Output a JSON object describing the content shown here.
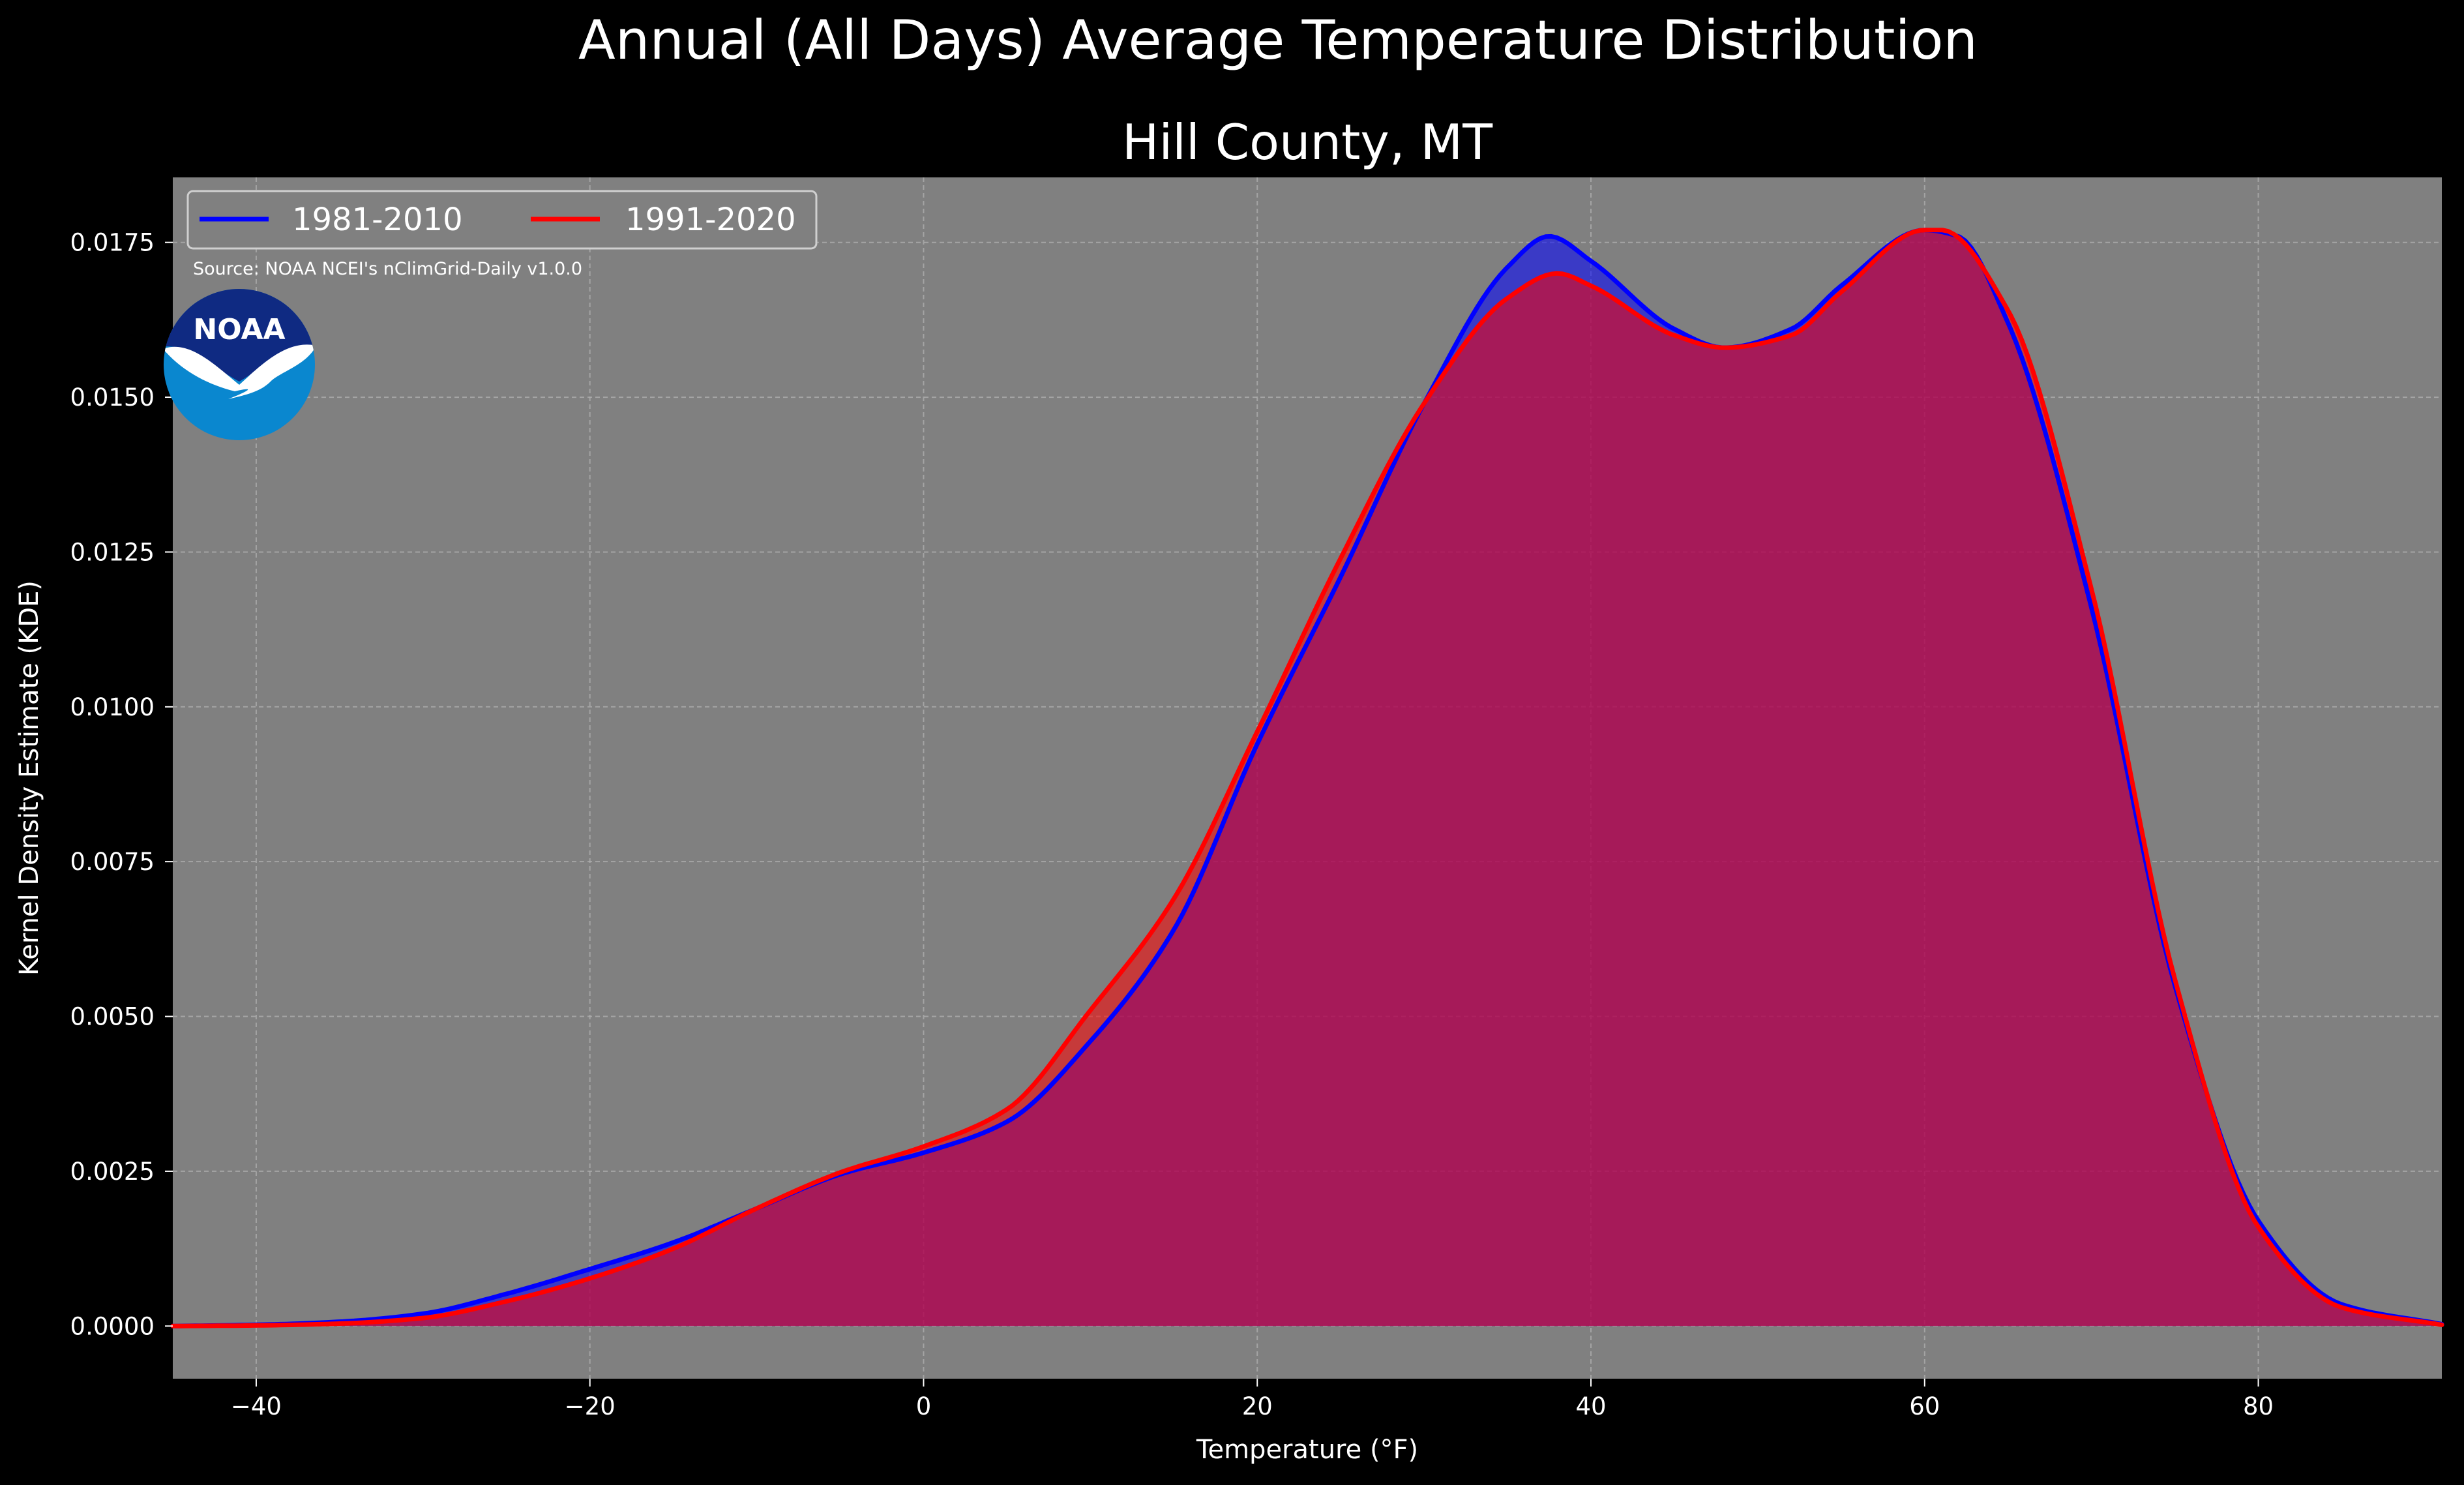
{
  "title": "Annual (All Days) Average Temperature Distribution",
  "subtitle": "Hill County, MT",
  "source": "Source: NOAA NCEI's nClimGrid-Daily v1.0.0",
  "logo": {
    "text": "NOAA",
    "icon": "noaa-logo"
  },
  "colors": {
    "background": "#000000",
    "plot_background": "#808080",
    "grid": "#b0b0b0",
    "series_1981_2010": "#0000ff",
    "series_1991_2020": "#ff0000"
  },
  "chart_data": {
    "type": "area",
    "title": "Annual (All Days) Average Temperature Distribution",
    "subtitle": "Hill County, MT",
    "xlabel": "Temperature (°F)",
    "ylabel": "Kernel Density Estimate (KDE)",
    "xlim": [
      -45,
      91
    ],
    "ylim": [
      -0.00085,
      0.01855
    ],
    "xticks": [
      -40,
      -20,
      0,
      20,
      40,
      60,
      80
    ],
    "xtick_labels": [
      "−40",
      "−20",
      "0",
      "20",
      "40",
      "60",
      "80"
    ],
    "yticks": [
      0,
      0.0025,
      0.005,
      0.0075,
      0.01,
      0.0125,
      0.015,
      0.0175
    ],
    "ytick_labels": [
      "0.0000",
      "0.0025",
      "0.0050",
      "0.0075",
      "0.0100",
      "0.0125",
      "0.0150",
      "0.0175"
    ],
    "grid": true,
    "legend_position": "top-left",
    "series": [
      {
        "name": "1981-2010",
        "color": "#0000ff",
        "x": [
          -45,
          -40,
          -35,
          -30,
          -25,
          -20,
          -15,
          -10,
          -5,
          0,
          5,
          10,
          15,
          20,
          25,
          30,
          35,
          37.5,
          40,
          45,
          48,
          52,
          55,
          60,
          62,
          65,
          70,
          75,
          80,
          85,
          91
        ],
        "y": [
          0.0,
          2e-05,
          7e-05,
          0.0002,
          0.00052,
          0.00092,
          0.00135,
          0.0019,
          0.00245,
          0.0028,
          0.0033,
          0.0046,
          0.0064,
          0.0094,
          0.0121,
          0.0149,
          0.0171,
          0.0176,
          0.0172,
          0.0161,
          0.0158,
          0.0161,
          0.0168,
          0.0177,
          0.0176,
          0.0162,
          0.0116,
          0.0055,
          0.0017,
          0.00035,
          3e-05
        ]
      },
      {
        "name": "1991-2020",
        "color": "#ff0000",
        "x": [
          -45,
          -40,
          -35,
          -30,
          -25,
          -20,
          -15,
          -10,
          -5,
          0,
          5,
          10,
          15,
          20,
          25,
          30,
          35,
          38,
          40,
          45,
          48,
          52,
          55,
          60,
          61,
          65,
          70,
          75,
          80,
          85,
          91
        ],
        "y": [
          0.0,
          1e-05,
          4e-05,
          0.00013,
          0.0004,
          0.00077,
          0.00125,
          0.0019,
          0.00248,
          0.0029,
          0.0035,
          0.0051,
          0.0069,
          0.0096,
          0.0124,
          0.0149,
          0.0166,
          0.017,
          0.0168,
          0.016,
          0.0158,
          0.016,
          0.0167,
          0.0177,
          0.0177,
          0.0164,
          0.0119,
          0.0056,
          0.0016,
          0.0003,
          2e-05
        ]
      }
    ]
  }
}
